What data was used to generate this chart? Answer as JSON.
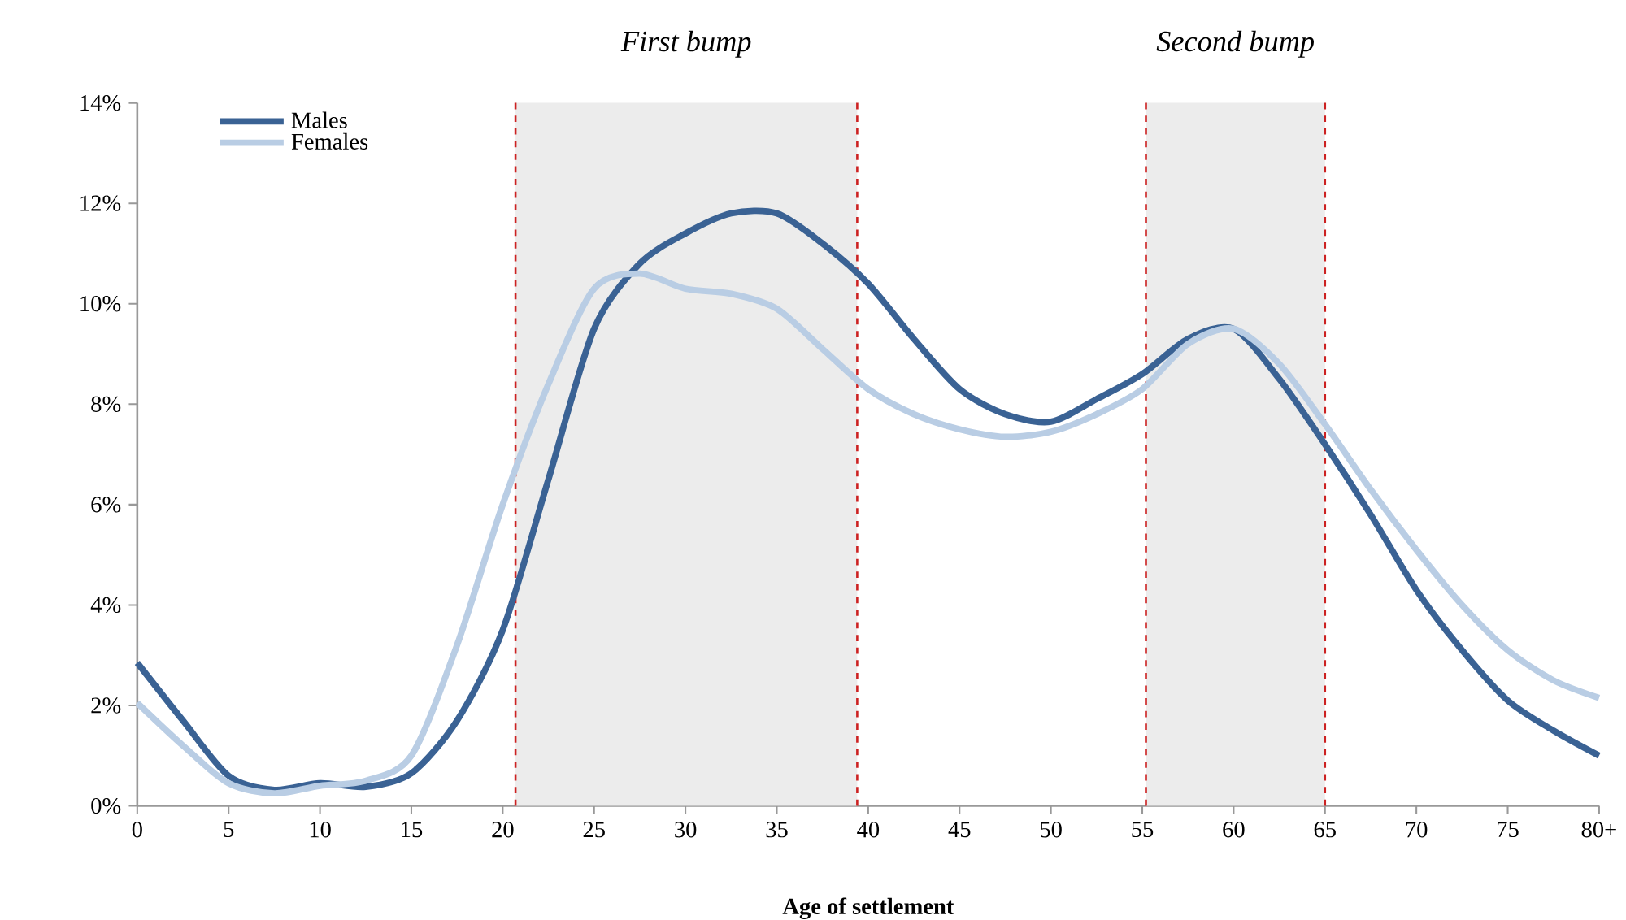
{
  "chart_data": {
    "type": "line",
    "xlabel": "Age of settlement",
    "x": [
      0,
      2.5,
      5,
      7.5,
      10,
      12.5,
      15,
      17.5,
      20,
      22.5,
      25,
      27.5,
      30,
      32.5,
      35,
      37.5,
      40,
      42.5,
      45,
      47.5,
      50,
      52.5,
      55,
      57.5,
      60,
      62.5,
      65,
      67.5,
      70,
      72.5,
      75,
      77.5,
      80
    ],
    "series": [
      {
        "name": "Males",
        "color": "#3a6294",
        "values": [
          2.85,
          1.7,
          0.6,
          0.32,
          0.45,
          0.38,
          0.65,
          1.7,
          3.5,
          6.5,
          9.5,
          10.8,
          11.4,
          11.8,
          11.8,
          11.2,
          10.4,
          9.3,
          8.3,
          7.8,
          7.65,
          8.1,
          8.6,
          9.3,
          9.5,
          8.5,
          7.2,
          5.8,
          4.3,
          3.1,
          2.1,
          1.5,
          1.0
        ]
      },
      {
        "name": "Females",
        "color": "#b9cde4",
        "values": [
          2.05,
          1.2,
          0.45,
          0.25,
          0.4,
          0.5,
          1.0,
          3.2,
          6.0,
          8.4,
          10.3,
          10.6,
          10.3,
          10.2,
          9.9,
          9.1,
          8.3,
          7.8,
          7.5,
          7.35,
          7.45,
          7.8,
          8.3,
          9.2,
          9.5,
          8.8,
          7.6,
          6.3,
          5.1,
          4.0,
          3.1,
          2.5,
          2.15
        ]
      }
    ],
    "xlim": [
      0,
      80
    ],
    "xticks": [
      0,
      5,
      10,
      15,
      20,
      25,
      30,
      35,
      40,
      45,
      50,
      55,
      60,
      65,
      70,
      75,
      {
        "value": 80,
        "label": "80+"
      }
    ],
    "ylim": [
      0,
      14
    ],
    "yticks": [
      {
        "value": 0,
        "label": "0%"
      },
      {
        "value": 2,
        "label": "2%"
      },
      {
        "value": 4,
        "label": "4%"
      },
      {
        "value": 6,
        "label": "6%"
      },
      {
        "value": 8,
        "label": "8%"
      },
      {
        "value": 10,
        "label": "10%"
      },
      {
        "value": 12,
        "label": "12%"
      },
      {
        "value": 14,
        "label": "14%"
      }
    ],
    "bands": [
      {
        "axis": "x",
        "from": 20.7,
        "to": 39.4,
        "label": "First bump",
        "color": "#ececec"
      },
      {
        "axis": "x",
        "from": 55.2,
        "to": 65,
        "label": "Second bump",
        "color": "#ececec"
      }
    ],
    "ref_lines": [
      {
        "axis": "x",
        "value": 20.7,
        "color": "#cc2222",
        "line_style": "dashed"
      },
      {
        "axis": "x",
        "value": 39.4,
        "color": "#cc2222",
        "line_style": "dashed"
      },
      {
        "axis": "x",
        "value": 55.2,
        "color": "#cc2222",
        "line_style": "dashed"
      },
      {
        "axis": "x",
        "value": 65,
        "color": "#cc2222",
        "line_style": "dashed"
      }
    ],
    "grid": false,
    "legend": "top left",
    "marker": "none",
    "line_style": "solid"
  }
}
